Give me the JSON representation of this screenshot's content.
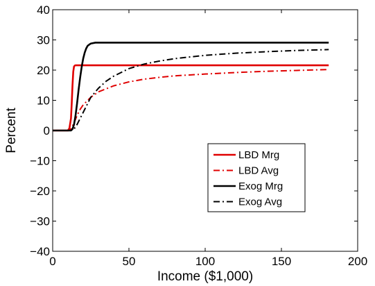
{
  "chart_data": {
    "type": "line",
    "title": "",
    "xlabel": "Income ($1,000)",
    "ylabel": "Percent",
    "xlim": [
      0,
      200
    ],
    "ylim": [
      -40,
      40
    ],
    "xticks": [
      0,
      50,
      100,
      150,
      200
    ],
    "yticks": [
      -40,
      -30,
      -20,
      -10,
      0,
      10,
      20,
      30,
      40
    ],
    "grid": false,
    "legend_position": "lower-right",
    "series": [
      {
        "name": "LBD Mrg",
        "color": "#e00000",
        "style": "solid",
        "x": [
          0,
          10,
          11,
          12,
          12.5,
          13,
          13.5,
          14,
          14.5,
          15,
          16,
          20,
          40,
          60,
          80,
          100,
          120,
          140,
          160,
          181
        ],
        "y": [
          0,
          0,
          0.8,
          4,
          9,
          15,
          19.5,
          21.2,
          21.5,
          21.6,
          21.6,
          21.6,
          21.6,
          21.6,
          21.6,
          21.6,
          21.6,
          21.6,
          21.6,
          21.6
        ]
      },
      {
        "name": "LBD Avg",
        "color": "#e00000",
        "style": "dashdot",
        "x": [
          0,
          10,
          12,
          14,
          16,
          18,
          20,
          25,
          30,
          40,
          50,
          60,
          70,
          80,
          100,
          120,
          140,
          160,
          181
        ],
        "y": [
          0,
          0,
          0.5,
          2.5,
          5,
          7,
          8.5,
          11,
          12.8,
          14.8,
          16.1,
          17,
          17.6,
          18.1,
          18.7,
          19.2,
          19.6,
          19.9,
          20.2
        ]
      },
      {
        "name": "Exog Mrg",
        "color": "#000000",
        "style": "solid",
        "x": [
          0,
          12,
          13,
          14,
          15,
          16,
          17,
          18,
          19,
          20,
          21,
          22,
          23,
          25,
          28,
          30,
          40,
          60,
          80,
          100,
          120,
          140,
          160,
          181
        ],
        "y": [
          0,
          0,
          0.5,
          2,
          5,
          9,
          13.5,
          17.5,
          21,
          23.8,
          25.8,
          27.2,
          28.1,
          28.8,
          29.1,
          29.1,
          29.1,
          29.1,
          29.1,
          29.1,
          29.1,
          29.1,
          29.1,
          29.1
        ]
      },
      {
        "name": "Exog Avg",
        "color": "#000000",
        "style": "dashdot",
        "x": [
          0,
          12,
          14,
          16,
          18,
          20,
          22,
          25,
          30,
          35,
          40,
          50,
          60,
          70,
          80,
          100,
          120,
          140,
          160,
          181
        ],
        "y": [
          0,
          0,
          0.5,
          2,
          4,
          6,
          8,
          11,
          14,
          16.3,
          18,
          20.5,
          22,
          23,
          23.8,
          24.9,
          25.6,
          26.1,
          26.5,
          26.8
        ]
      }
    ]
  }
}
